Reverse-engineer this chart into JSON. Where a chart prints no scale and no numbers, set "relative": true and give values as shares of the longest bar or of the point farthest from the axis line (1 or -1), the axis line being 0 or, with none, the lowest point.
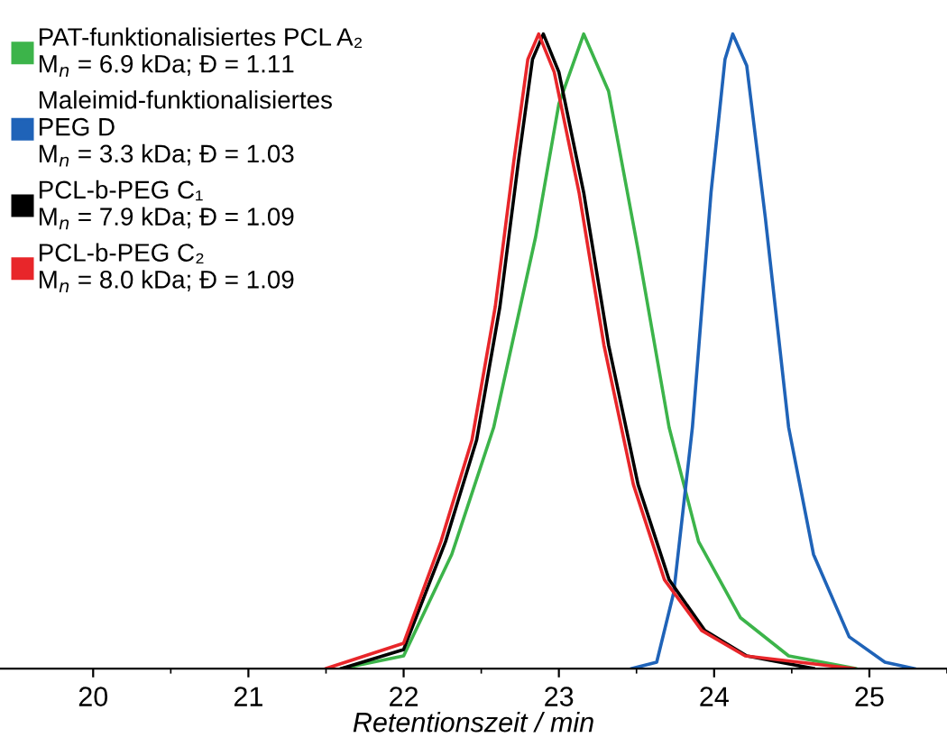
{
  "chart_data": {
    "type": "line",
    "relative": true,
    "xlabel": "Retentionszeit / min",
    "xlim": [
      19.4,
      25.5
    ],
    "xticks": [
      20,
      21,
      22,
      23,
      24,
      25
    ],
    "grid": false,
    "legend": "top left",
    "marker": "none",
    "line_style": "solid",
    "tick_labels": "x",
    "series": [
      {
        "name": "PAT-funktionalisiertes PCL A₂",
        "color": "#3cb44a",
        "x": [
          21.6,
          22.0,
          22.31,
          22.58,
          22.85,
          23.0,
          23.16,
          23.32,
          23.51,
          23.71,
          23.9,
          24.17,
          24.48,
          24.91
        ],
        "values": [
          0,
          0.02,
          0.18,
          0.38,
          0.68,
          0.89,
          1,
          0.91,
          0.66,
          0.38,
          0.2,
          0.08,
          0.02,
          0
        ]
      },
      {
        "name": "Maleimid-funktionalisiertes\nPEG D",
        "color": "#1f63b8",
        "x": [
          23.47,
          23.63,
          23.74,
          23.86,
          23.98,
          24.07,
          24.12,
          24.21,
          24.33,
          24.48,
          24.64,
          24.87,
          25.1,
          25.29
        ],
        "values": [
          0,
          0.01,
          0.12,
          0.38,
          0.75,
          0.96,
          1,
          0.95,
          0.71,
          0.38,
          0.18,
          0.05,
          0.01,
          0
        ]
      },
      {
        "name": "PCL-b-PEG C₁",
        "color": "#000000",
        "x": [
          21.6,
          22.0,
          22.27,
          22.47,
          22.62,
          22.74,
          22.83,
          22.9,
          23.0,
          23.16,
          23.32,
          23.51,
          23.71,
          23.94,
          24.21,
          24.64
        ],
        "values": [
          0,
          0.03,
          0.2,
          0.36,
          0.57,
          0.8,
          0.96,
          1,
          0.94,
          0.75,
          0.51,
          0.29,
          0.14,
          0.06,
          0.02,
          0
        ]
      },
      {
        "name": "PCL-b-PEG C₂",
        "color": "#e8262a",
        "x": [
          21.5,
          22.0,
          22.24,
          22.44,
          22.59,
          22.71,
          22.8,
          22.87,
          22.97,
          23.13,
          23.29,
          23.48,
          23.68,
          23.92,
          24.2,
          24.9
        ],
        "values": [
          0,
          0.04,
          0.2,
          0.36,
          0.57,
          0.8,
          0.96,
          1,
          0.94,
          0.75,
          0.51,
          0.29,
          0.14,
          0.06,
          0.02,
          0
        ]
      }
    ],
    "annotations": [
      "M$_{n}$ = 6.9 kDa; Đ = 1.11",
      "M$_{n}$ = 3.3 kDa; Đ = 1.03",
      "M$_{n}$ = 7.9 kDa; Đ = 1.09",
      "M$_{n}$ = 8.0 kDa; Đ = 1.09"
    ]
  }
}
